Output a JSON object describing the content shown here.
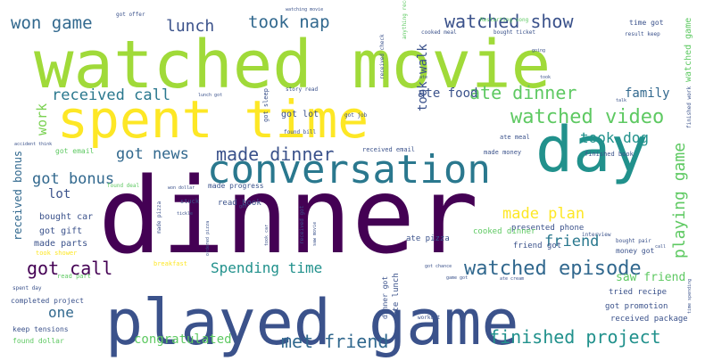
{
  "words": [
    {
      "text": "dinner",
      "color": "#440154"
    },
    {
      "text": "watched movie",
      "color": "#a0da39"
    },
    {
      "text": "played game",
      "color": "#3b528b"
    },
    {
      "text": "spent time",
      "color": "#fde725"
    },
    {
      "text": "day",
      "color": "#21918c"
    },
    {
      "text": "conversation",
      "color": "#2a788e"
    },
    {
      "text": "watched episode",
      "color": "#31688e"
    },
    {
      "text": "watched show",
      "color": "#3b528b"
    },
    {
      "text": "watched video",
      "color": "#5ec962"
    },
    {
      "text": "made dinner",
      "color": "#3b528b"
    },
    {
      "text": "ate dinner",
      "color": "#5ec962"
    },
    {
      "text": "met friend",
      "color": "#31688e"
    },
    {
      "text": "finished project",
      "color": "#21918c"
    },
    {
      "text": "won game",
      "color": "#31688e"
    },
    {
      "text": "took nap",
      "color": "#31688e"
    },
    {
      "text": "lunch",
      "color": "#3b528b"
    },
    {
      "text": "received call",
      "color": "#2a788e"
    },
    {
      "text": "got news",
      "color": "#31688e"
    },
    {
      "text": "got bonus",
      "color": "#31688e"
    },
    {
      "text": "got call",
      "color": "#440154"
    },
    {
      "text": "Spending time",
      "color": "#21918c"
    },
    {
      "text": "made plan",
      "color": "#fde725"
    },
    {
      "text": "friend",
      "color": "#2a788e"
    },
    {
      "text": "playing game",
      "color": "#5ec962"
    },
    {
      "text": "took dog",
      "color": "#21918c"
    },
    {
      "text": "took walk",
      "color": "#3b528b"
    },
    {
      "text": "ate food",
      "color": "#3b528b"
    },
    {
      "text": "family",
      "color": "#31688e"
    },
    {
      "text": "work",
      "color": "#7ad151"
    },
    {
      "text": "lot",
      "color": "#3b528b"
    },
    {
      "text": "one",
      "color": "#31688e"
    },
    {
      "text": "congratulated",
      "color": "#5ec962"
    },
    {
      "text": "saw friend",
      "color": "#5ec962"
    },
    {
      "text": "received bonus",
      "color": "#31688e"
    },
    {
      "text": "got lot",
      "color": "#3b528b"
    },
    {
      "text": "bought car",
      "color": "#3b528b"
    },
    {
      "text": "got gift",
      "color": "#3b528b"
    },
    {
      "text": "made parts",
      "color": "#3b528b"
    },
    {
      "text": "presented phone",
      "color": "#3b528b"
    },
    {
      "text": "friend got",
      "color": "#3b528b"
    },
    {
      "text": "cooked dinner",
      "color": "#5ec962"
    },
    {
      "text": "ate pizza",
      "color": "#3b528b"
    },
    {
      "text": "money got",
      "color": "#3b528b"
    },
    {
      "text": "tried recipe",
      "color": "#3b528b"
    },
    {
      "text": "got promotion",
      "color": "#3b528b"
    },
    {
      "text": "received package",
      "color": "#3b528b"
    },
    {
      "text": "completed project",
      "color": "#3b528b"
    },
    {
      "text": "keep tensions",
      "color": "#3b528b"
    },
    {
      "text": "found dollar",
      "color": "#5ec962"
    },
    {
      "text": "read book",
      "color": "#3b528b"
    },
    {
      "text": "got email",
      "color": "#5ec962"
    },
    {
      "text": "ate meal",
      "color": "#3b528b"
    },
    {
      "text": "made money",
      "color": "#3b528b"
    },
    {
      "text": "finished book",
      "color": "#3b528b"
    },
    {
      "text": "made progress",
      "color": "#3b528b"
    },
    {
      "text": "received email",
      "color": "#3b528b"
    },
    {
      "text": "found deal",
      "color": "#5ec962"
    },
    {
      "text": "time got",
      "color": "#3b528b"
    },
    {
      "text": "got offer",
      "color": "#3b528b"
    },
    {
      "text": "got sleep",
      "color": "#3b528b"
    },
    {
      "text": "story read",
      "color": "#3b528b"
    },
    {
      "text": "got job",
      "color": "#3b528b"
    },
    {
      "text": "found bill",
      "color": "#3b528b"
    },
    {
      "text": "ate lunch",
      "color": "#3b528b"
    },
    {
      "text": "dinner got",
      "color": "#3b528b"
    },
    {
      "text": "got chance",
      "color": "#3b528b"
    },
    {
      "text": "bought pair",
      "color": "#3b528b"
    },
    {
      "text": "interview",
      "color": "#3b528b"
    },
    {
      "text": "took shower",
      "color": "#fde725"
    },
    {
      "text": "breakfast",
      "color": "#fde725"
    },
    {
      "text": "read part",
      "color": "#5ec962"
    },
    {
      "text": "spent day",
      "color": "#3b528b"
    },
    {
      "text": "workout",
      "color": "#3b528b"
    },
    {
      "text": "cooked meal",
      "color": "#3b528b"
    },
    {
      "text": "bought ticket",
      "color": "#3b528b"
    },
    {
      "text": "watched game",
      "color": "#5ec962"
    },
    {
      "text": "result keep",
      "color": "#3b528b"
    },
    {
      "text": "received check",
      "color": "#3b528b"
    },
    {
      "text": "lunch got",
      "color": "#3b528b"
    },
    {
      "text": "won dollar",
      "color": "#3b528b"
    },
    {
      "text": "stuck",
      "color": "#3b528b"
    },
    {
      "text": "watching movie",
      "color": "#3b528b"
    },
    {
      "text": "Restarting song",
      "color": "#5ec962"
    },
    {
      "text": "anything received",
      "color": "#5ec962"
    },
    {
      "text": "finished work",
      "color": "#3b528b"
    },
    {
      "text": "time spending",
      "color": "#3b528b"
    },
    {
      "text": "took",
      "color": "#3b528b"
    },
    {
      "text": "ate cream",
      "color": "#3b528b"
    },
    {
      "text": "game got",
      "color": "#3b528b"
    },
    {
      "text": "received got",
      "color": "#3b528b"
    },
    {
      "text": "ordered pizza",
      "color": "#3b528b"
    },
    {
      "text": "made pizza",
      "color": "#3b528b"
    },
    {
      "text": "took car",
      "color": "#3b528b"
    },
    {
      "text": "saw movie",
      "color": "#3b528b"
    },
    {
      "text": "accident think",
      "color": "#3b528b"
    },
    {
      "text": "tickle",
      "color": "#3b528b"
    },
    {
      "text": "got",
      "color": "#3b528b"
    },
    {
      "text": "talk",
      "color": "#3b528b"
    },
    {
      "text": "going",
      "color": "#3b528b"
    },
    {
      "text": "ate",
      "color": "#3b528b"
    },
    {
      "text": "call",
      "color": "#3b528b"
    }
  ]
}
